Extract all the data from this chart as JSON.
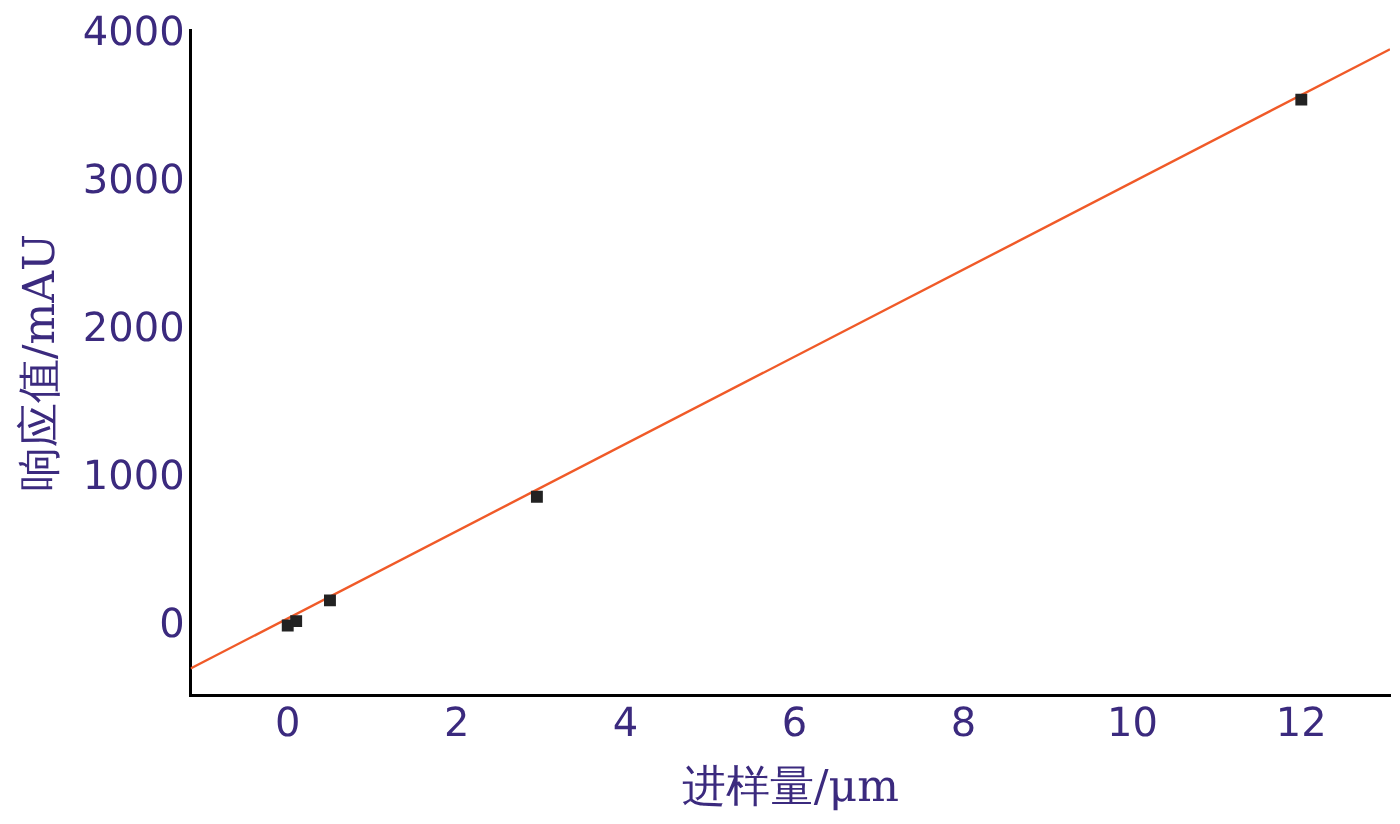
{
  "chart_data": {
    "type": "scatter",
    "xlabel": "进样量/μm",
    "ylabel": "响应值/mAU",
    "xlim": [
      -1.15,
      13.05
    ],
    "ylim": [
      -460,
      4030
    ],
    "xticks": [
      0,
      2,
      4,
      6,
      8,
      10,
      12
    ],
    "yticks": [
      0,
      1000,
      2000,
      3000,
      4000
    ],
    "grid": false,
    "legend": false,
    "series": [
      {
        "marker": "square",
        "color": "#222222",
        "x": [
          0,
          0.1,
          0.5,
          2.95,
          12
        ],
        "values": [
          10,
          40,
          180,
          880,
          3560
        ]
      },
      {
        "type": "line",
        "marker": "none",
        "color": "#f05a28",
        "x": [
          -1.15,
          13.05
        ],
        "values": [
          -280,
          3900
        ]
      }
    ]
  }
}
